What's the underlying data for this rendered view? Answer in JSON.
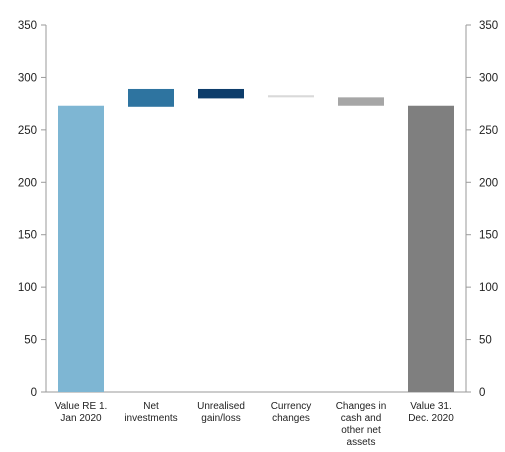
{
  "chart_data": {
    "type": "bar",
    "subtype": "waterfall",
    "categories": [
      [
        "Value RE 1.",
        "Jan 2020"
      ],
      [
        "Net",
        "investments"
      ],
      [
        "Unrealised",
        "gain/loss"
      ],
      [
        "Currency",
        "changes"
      ],
      [
        "Changes in",
        "cash and",
        "other net",
        "assets"
      ],
      [
        "Value 31.",
        "Dec. 2020"
      ]
    ],
    "bars": [
      {
        "start": 0,
        "end": 273,
        "color": "#7eb6d3"
      },
      {
        "start": 272,
        "end": 289,
        "color": "#2e74a0"
      },
      {
        "start": 280,
        "end": 289,
        "color": "#0d3d6b"
      },
      {
        "start": 281,
        "end": 283,
        "color": "#d9d9d9"
      },
      {
        "start": 273,
        "end": 281,
        "color": "#a6a6a6"
      },
      {
        "start": 0,
        "end": 273,
        "color": "#7f7f7f"
      }
    ],
    "ylim": [
      0,
      350
    ],
    "yticks": [
      0,
      50,
      100,
      150,
      200,
      250,
      300,
      350
    ],
    "ytick_labels": [
      "0",
      "50",
      "100",
      "150",
      "200",
      "250",
      "300",
      "350"
    ],
    "secondary_axis": true,
    "grid": false,
    "title": "",
    "xlabel": "",
    "ylabel": ""
  }
}
